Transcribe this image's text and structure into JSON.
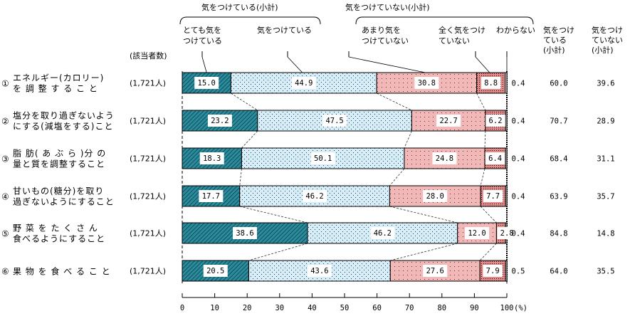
{
  "chart_data": {
    "type": "bar",
    "orientation": "horizontal",
    "stacked": true,
    "percent_axis": true,
    "xlim": [
      0,
      100
    ],
    "xticks": [
      "0",
      "10",
      "20",
      "30",
      "40",
      "50",
      "60",
      "70",
      "80",
      "90",
      "100"
    ],
    "xunit": "(%)",
    "count_header": "(該当者数)",
    "group_headers": {
      "careful_subtotal": "気をつけている(小計)",
      "not_careful_subtotal": "気をつけていない(小計)"
    },
    "series": [
      {
        "name_lines": [
          "とても気を",
          "つけている"
        ],
        "color": "#2a8c9c",
        "pattern": "hatch",
        "values": [
          15.0,
          23.2,
          18.3,
          17.7,
          38.6,
          20.5
        ]
      },
      {
        "name_lines": [
          "気をつけている"
        ],
        "color": "#d6eef8",
        "pattern": "dots",
        "values": [
          44.9,
          47.5,
          50.1,
          46.2,
          46.2,
          43.6
        ]
      },
      {
        "name_lines": [
          "あまり気を",
          "つけていない"
        ],
        "color": "#f2b8b8",
        "pattern": "dots",
        "values": [
          30.8,
          22.7,
          24.8,
          28.0,
          12.0,
          27.6
        ]
      },
      {
        "name_lines": [
          "全く気をつけ",
          "ていない"
        ],
        "color": "#e08a8a",
        "pattern": "dense",
        "values": [
          8.8,
          6.2,
          6.4,
          7.7,
          2.8,
          7.9
        ]
      },
      {
        "name_lines": [
          "わからない"
        ],
        "color": "#ffffff",
        "pattern": "none",
        "values": [
          0.4,
          0.4,
          0.4,
          0.4,
          0.4,
          0.5
        ]
      }
    ],
    "value_labels": [
      [
        "15.0",
        "44.9",
        "30.8",
        "8.8"
      ],
      [
        "23.2",
        "47.5",
        "22.7",
        "6.2"
      ],
      [
        "18.3",
        "50.1",
        "24.8",
        "6.4"
      ],
      [
        "17.7",
        "46.2",
        "28.0",
        "7.7"
      ],
      [
        "38.6",
        "46.2",
        "12.0",
        "2.8"
      ],
      [
        "20.5",
        "43.6",
        "27.6",
        "7.9"
      ]
    ],
    "dontknow_labels": [
      "0.4",
      "0.4",
      "0.4",
      "0.4",
      "0.4",
      "0.5"
    ],
    "subtotal_headers": [
      [
        "気をつけ",
        "ている",
        "(小計)"
      ],
      [
        "気をつけ",
        "ていない",
        "(小計)"
      ]
    ],
    "subtotal_careful": [
      "60.0",
      "70.7",
      "68.4",
      "63.9",
      "84.8",
      "64.0"
    ],
    "subtotal_not_careful": [
      "39.6",
      "28.9",
      "31.1",
      "35.7",
      "14.8",
      "35.5"
    ],
    "categories": [
      {
        "num": "①",
        "line1": "エネルギー(カロリー)",
        "line2": "を 調 整 す る こ と",
        "count": "(1,721人)"
      },
      {
        "num": "②",
        "line1": "塩分を取り過ぎないよう",
        "line2": "にする(減塩をする)こと",
        "count": "(1,721人)"
      },
      {
        "num": "③",
        "line1": "脂 肪( あ ぶ ら )分 の",
        "line2": "量と質を調整すること",
        "count": "(1,721人)"
      },
      {
        "num": "④",
        "line1": "甘いもの(糖分)を取り",
        "line2": "過ぎないようにすること",
        "count": "(1,721人)"
      },
      {
        "num": "⑤",
        "line1": "野 菜 を た く さ ん",
        "line2": "食べるようにすること",
        "count": "(1,721人)"
      },
      {
        "num": "⑥",
        "line1": "果 物 を 食 べ る こ と",
        "line2": "",
        "count": "(1,721人)"
      }
    ]
  }
}
